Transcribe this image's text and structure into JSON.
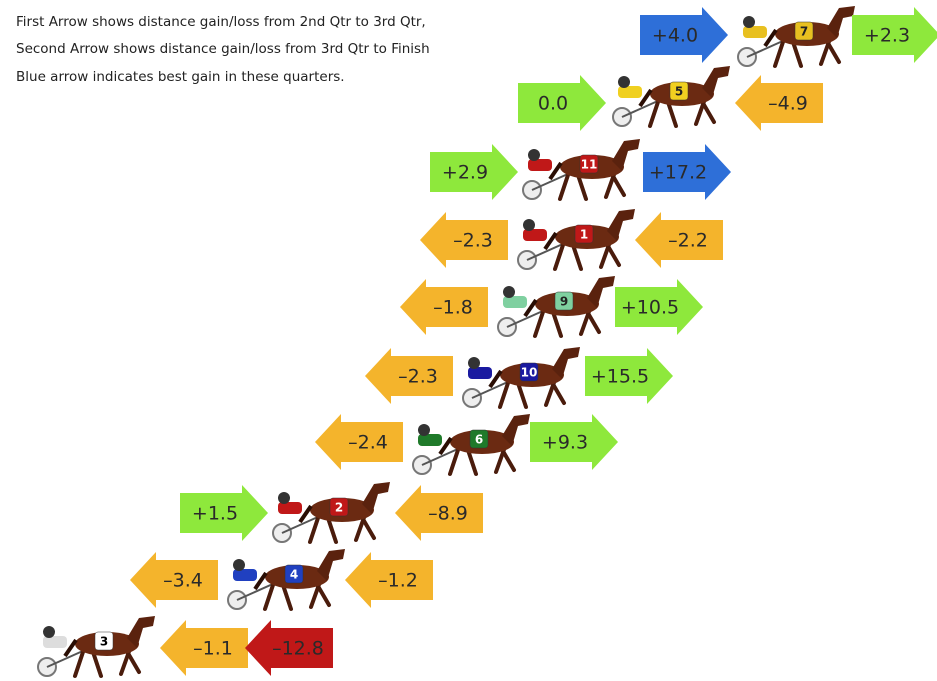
{
  "notes": [
    "First Arrow shows distance gain/loss from 2nd Qtr to 3rd Qtr,",
    "Second Arrow shows distance gain/loss from 3rd Qtr to Finish",
    "Blue arrow indicates best gain in these quarters."
  ],
  "rows": [
    {
      "horse": "7",
      "first": {
        "text": "+4.0",
        "color": "#2e6fd8",
        "direction": "right"
      },
      "second": {
        "text": "+2.3",
        "color": "#8ee83c",
        "direction": "right"
      }
    },
    {
      "horse": "5",
      "first": {
        "text": "0.0",
        "color": "#8ee83c",
        "direction": "right"
      },
      "second": {
        "text": "–4.9",
        "color": "#f4b42c",
        "direction": "left"
      }
    },
    {
      "horse": "11",
      "first": {
        "text": "+2.9",
        "color": "#8ee83c",
        "direction": "right"
      },
      "second": {
        "text": "+17.2",
        "color": "#2e6fd8",
        "direction": "right"
      }
    },
    {
      "horse": "1",
      "first": {
        "text": "–2.3",
        "color": "#f4b42c",
        "direction": "left"
      },
      "second": {
        "text": "–2.2",
        "color": "#f4b42c",
        "direction": "left"
      }
    },
    {
      "horse": "9",
      "first": {
        "text": "–1.8",
        "color": "#f4b42c",
        "direction": "left"
      },
      "second": {
        "text": "+10.5",
        "color": "#8ee83c",
        "direction": "right"
      }
    },
    {
      "horse": "10",
      "first": {
        "text": "–2.3",
        "color": "#f4b42c",
        "direction": "left"
      },
      "second": {
        "text": "+15.5",
        "color": "#8ee83c",
        "direction": "right"
      }
    },
    {
      "horse": "6",
      "first": {
        "text": "–2.4",
        "color": "#f4b42c",
        "direction": "left"
      },
      "second": {
        "text": "+9.3",
        "color": "#8ee83c",
        "direction": "right"
      }
    },
    {
      "horse": "2",
      "first": {
        "text": "+1.5",
        "color": "#8ee83c",
        "direction": "right"
      },
      "second": {
        "text": "–8.9",
        "color": "#f4b42c",
        "direction": "left"
      }
    },
    {
      "horse": "4",
      "first": {
        "text": "–3.4",
        "color": "#f4b42c",
        "direction": "left"
      },
      "second": {
        "text": "–1.2",
        "color": "#f4b42c",
        "direction": "left"
      }
    },
    {
      "horse": "3",
      "first": {
        "text": "–1.1",
        "color": "#f4b42c",
        "direction": "left"
      },
      "second": {
        "text": "–12.8",
        "color": "#c01818",
        "direction": "left"
      }
    }
  ]
}
